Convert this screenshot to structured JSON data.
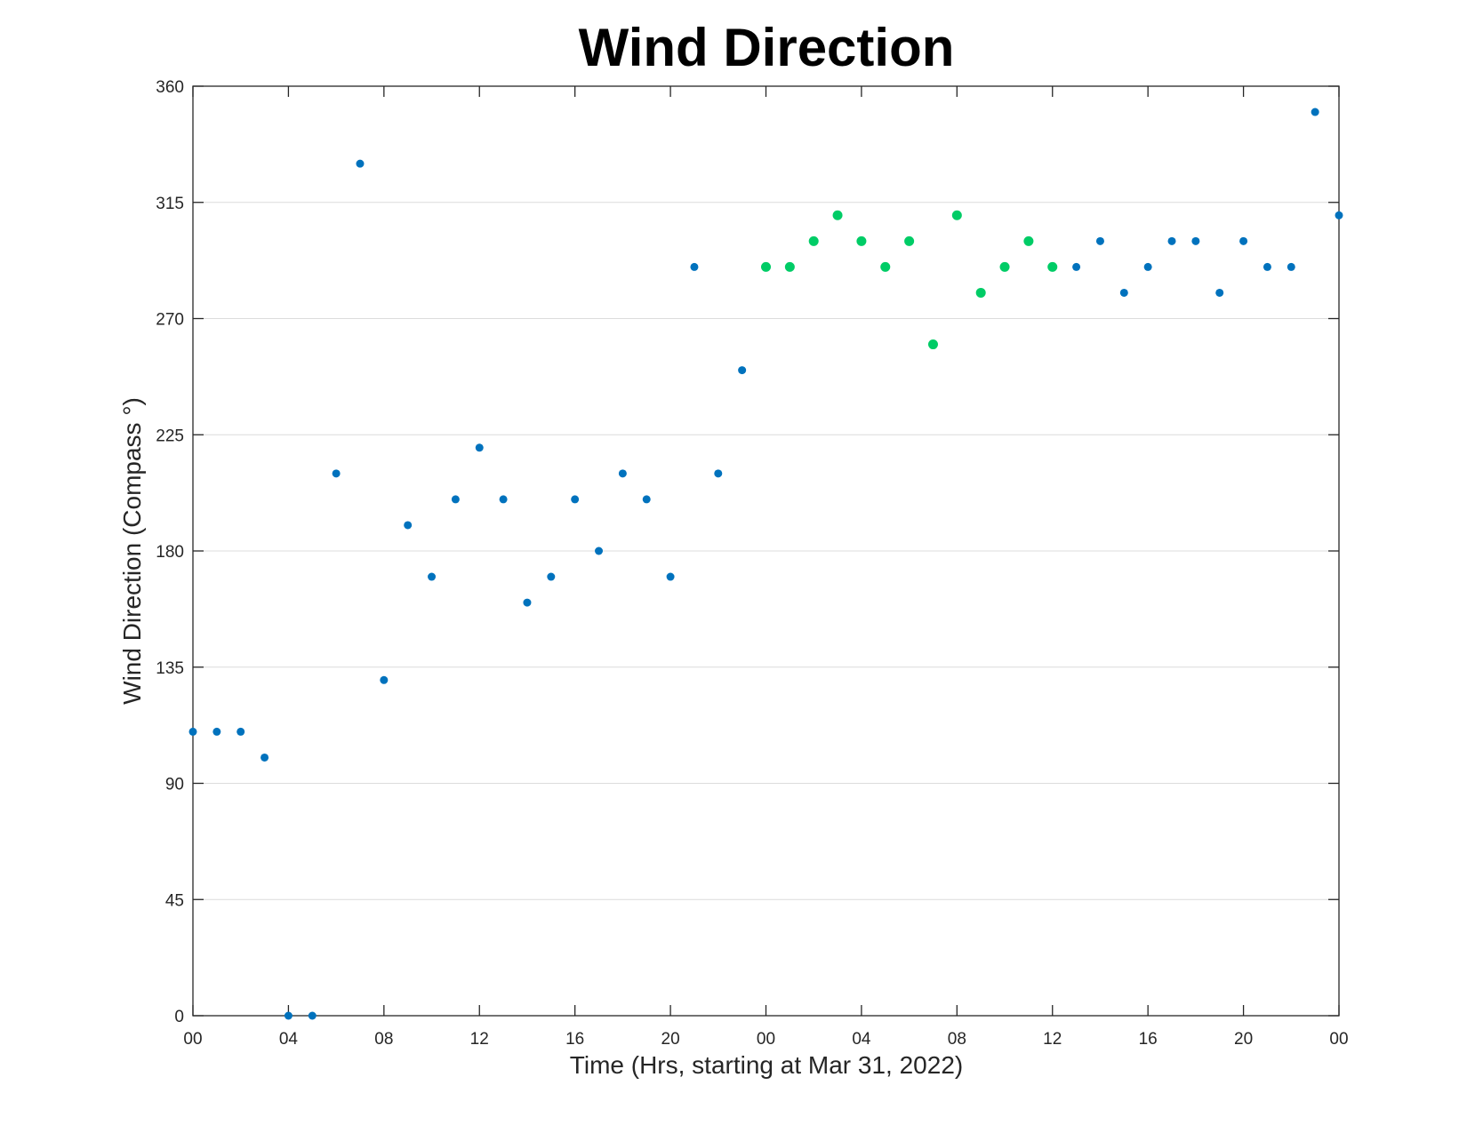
{
  "chart_data": {
    "type": "scatter",
    "title": "Wind Direction",
    "xlabel": "Time (Hrs, starting at Mar 31, 2022)",
    "ylabel": "Wind Direction (Compass °)",
    "x_unit": "hour",
    "x_start": "Mar 31, 2022 00:00",
    "xlim": [
      "Mar 31, 2022 00:00",
      "Apr 2, 2022 00:00"
    ],
    "ylim": [
      0,
      360
    ],
    "x_tick_values": [
      "Mar 31, 2022 00:00",
      "Mar 31, 2022 04:00",
      "Mar 31, 2022 08:00",
      "Mar 31, 2022 12:00",
      "Mar 31, 2022 16:00",
      "Mar 31, 2022 20:00",
      "Apr 1, 2022 00:00",
      "Apr 1, 2022 04:00",
      "Apr 1, 2022 08:00",
      "Apr 1, 2022 12:00",
      "Apr 1, 2022 16:00",
      "Apr 1, 2022 20:00",
      "Apr 2, 2022 00:00"
    ],
    "x_tick_labels": [
      "00",
      "04",
      "08",
      "12",
      "16",
      "20",
      "00",
      "04",
      "08",
      "12",
      "16",
      "20",
      "00"
    ],
    "y_ticks": [
      0,
      45,
      90,
      135,
      180,
      225,
      270,
      315,
      360
    ],
    "grid": "horizontal",
    "series": [
      {
        "color": "#0072BD",
        "points": [
          {
            "time": "Mar 31, 2022 00:00",
            "y": 110
          },
          {
            "time": "Mar 31, 2022 01:00",
            "y": 110
          },
          {
            "time": "Mar 31, 2022 02:00",
            "y": 110
          },
          {
            "time": "Mar 31, 2022 03:00",
            "y": 100
          },
          {
            "time": "Mar 31, 2022 04:00",
            "y": 0
          },
          {
            "time": "Mar 31, 2022 05:00",
            "y": 0
          },
          {
            "time": "Mar 31, 2022 06:00",
            "y": 210
          },
          {
            "time": "Mar 31, 2022 07:00",
            "y": 330
          },
          {
            "time": "Mar 31, 2022 08:00",
            "y": 130
          },
          {
            "time": "Mar 31, 2022 09:00",
            "y": 190
          },
          {
            "time": "Mar 31, 2022 10:00",
            "y": 170
          },
          {
            "time": "Mar 31, 2022 11:00",
            "y": 200
          },
          {
            "time": "Mar 31, 2022 12:00",
            "y": 220
          },
          {
            "time": "Mar 31, 2022 13:00",
            "y": 200
          },
          {
            "time": "Mar 31, 2022 14:00",
            "y": 160
          },
          {
            "time": "Mar 31, 2022 15:00",
            "y": 170
          },
          {
            "time": "Mar 31, 2022 16:00",
            "y": 200
          },
          {
            "time": "Mar 31, 2022 17:00",
            "y": 180
          },
          {
            "time": "Mar 31, 2022 18:00",
            "y": 210
          },
          {
            "time": "Mar 31, 2022 19:00",
            "y": 200
          },
          {
            "time": "Mar 31, 2022 20:00",
            "y": 170
          },
          {
            "time": "Mar 31, 2022 21:00",
            "y": 290
          },
          {
            "time": "Mar 31, 2022 22:00",
            "y": 210
          },
          {
            "time": "Mar 31, 2022 23:00",
            "y": 250
          },
          {
            "time": "Apr 1, 2022 13:00",
            "y": 290
          },
          {
            "time": "Apr 1, 2022 14:00",
            "y": 300
          },
          {
            "time": "Apr 1, 2022 15:00",
            "y": 280
          },
          {
            "time": "Apr 1, 2022 16:00",
            "y": 290
          },
          {
            "time": "Apr 1, 2022 17:00",
            "y": 300
          },
          {
            "time": "Apr 1, 2022 18:00",
            "y": 300
          },
          {
            "time": "Apr 1, 2022 19:00",
            "y": 280
          },
          {
            "time": "Apr 1, 2022 20:00",
            "y": 300
          },
          {
            "time": "Apr 1, 2022 21:00",
            "y": 290
          },
          {
            "time": "Apr 1, 2022 22:00",
            "y": 290
          },
          {
            "time": "Apr 1, 2022 23:00",
            "y": 350
          },
          {
            "time": "Apr 2, 2022 00:00",
            "y": 310
          }
        ]
      },
      {
        "color": "#00CC66",
        "points": [
          {
            "time": "Apr 1, 2022 00:00",
            "y": 290
          },
          {
            "time": "Apr 1, 2022 01:00",
            "y": 290
          },
          {
            "time": "Apr 1, 2022 02:00",
            "y": 300
          },
          {
            "time": "Apr 1, 2022 03:00",
            "y": 310
          },
          {
            "time": "Apr 1, 2022 04:00",
            "y": 300
          },
          {
            "time": "Apr 1, 2022 05:00",
            "y": 290
          },
          {
            "time": "Apr 1, 2022 06:00",
            "y": 300
          },
          {
            "time": "Apr 1, 2022 07:00",
            "y": 260
          },
          {
            "time": "Apr 1, 2022 08:00",
            "y": 310
          },
          {
            "time": "Apr 1, 2022 09:00",
            "y": 280
          },
          {
            "time": "Apr 1, 2022 10:00",
            "y": 290
          },
          {
            "time": "Apr 1, 2022 11:00",
            "y": 300
          },
          {
            "time": "Apr 1, 2022 12:00",
            "y": 290
          }
        ]
      }
    ]
  }
}
